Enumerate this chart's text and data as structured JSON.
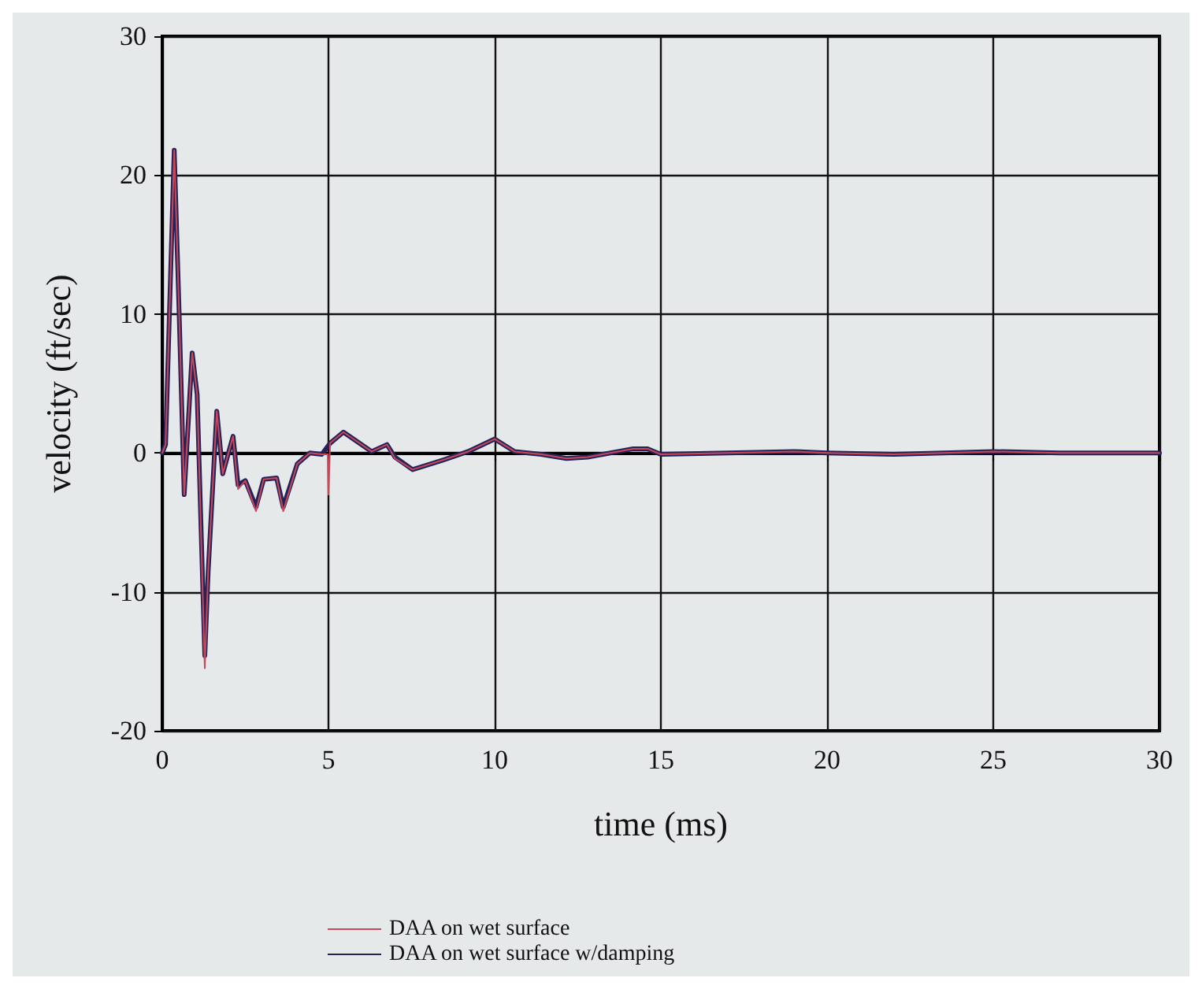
{
  "chart_data": {
    "type": "line",
    "xlabel": "time (ms)",
    "ylabel": "velocity (ft/sec)",
    "xlim": [
      0,
      30
    ],
    "ylim": [
      -20,
      30
    ],
    "xticks": [
      0,
      5,
      10,
      15,
      20,
      25,
      30
    ],
    "yticks": [
      -20,
      -10,
      0,
      10,
      20,
      30
    ],
    "grid": true,
    "legend": "bottom",
    "marker": "none",
    "line_style": "solid",
    "series": [
      {
        "name": "DAA on wet surface",
        "color": "#c84858",
        "x": [
          0,
          0.1,
          0.36,
          0.51,
          0.66,
          0.9,
          1.05,
          1.28,
          1.38,
          1.64,
          1.82,
          2.13,
          2.28,
          2.5,
          2.82,
          3.05,
          3.44,
          3.64,
          4.06,
          4.44,
          4.8,
          4.98,
          5.0,
          5.05,
          5.45,
          6.3,
          6.76,
          7.0,
          7.53,
          8.46,
          9.2,
          10.0,
          10.6,
          11.4,
          12.16,
          12.8,
          14.17,
          14.6,
          15.0,
          17,
          19,
          20,
          22,
          25,
          27,
          30
        ],
        "values": [
          0,
          0.6,
          21.8,
          9.9,
          -3.0,
          7.2,
          4.2,
          -15.5,
          -8.6,
          3.0,
          -1.5,
          1.2,
          -2.6,
          -2.0,
          -4.2,
          -1.9,
          -1.8,
          -4.2,
          -0.8,
          0,
          -0.1,
          -0.1,
          -3.0,
          0.7,
          1.5,
          0.1,
          0.6,
          -0.4,
          -1.2,
          -0.5,
          0.1,
          1.0,
          0.1,
          -0.1,
          -0.4,
          -0.3,
          0.3,
          0.3,
          -0.1,
          0,
          0.1,
          0,
          -0.1,
          0.1,
          0,
          0
        ]
      },
      {
        "name": "DAA on wet surface w/damping",
        "color": "#25225a",
        "x": [
          0,
          0.1,
          0.36,
          0.51,
          0.66,
          0.9,
          1.05,
          1.28,
          1.38,
          1.64,
          1.82,
          2.13,
          2.28,
          2.5,
          2.82,
          3.05,
          3.44,
          3.64,
          4.06,
          4.44,
          4.8,
          5.05,
          5.45,
          6.3,
          6.76,
          7.0,
          7.53,
          8.46,
          9.2,
          10.0,
          10.6,
          11.4,
          12.16,
          12.8,
          14.17,
          14.6,
          15.0,
          17,
          19,
          20,
          22,
          25,
          27,
          30
        ],
        "values": [
          0,
          0.6,
          21.8,
          9.9,
          -3.0,
          7.2,
          4.2,
          -14.6,
          -8.6,
          3.0,
          -1.5,
          1.2,
          -2.3,
          -2.0,
          -3.9,
          -1.9,
          -1.8,
          -3.9,
          -0.8,
          0,
          -0.1,
          0.7,
          1.5,
          0.1,
          0.6,
          -0.3,
          -1.2,
          -0.5,
          0.1,
          1.0,
          0.1,
          -0.1,
          -0.4,
          -0.3,
          0.3,
          0.3,
          -0.1,
          0,
          0.1,
          0,
          -0.1,
          0.1,
          0,
          0
        ]
      }
    ]
  }
}
